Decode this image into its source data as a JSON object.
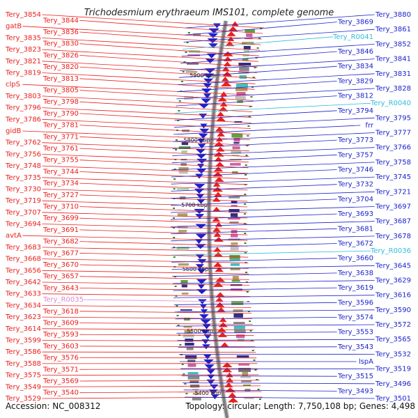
{
  "title": "Trichodesmium erythraeum IMS101, complete genome",
  "footer": {
    "accession": "Accession: NC_008312",
    "summary": "Topology: circular; Length: 7,750,108 bp; Genes: 4,498"
  },
  "colors": {
    "forward": "#e8201c",
    "reverse": "#1a22cc",
    "rna": "#33bbdd",
    "pseudo": "#dd88cc",
    "backbone": "#808080",
    "tick": "#2a8a2a"
  },
  "scale_labels": [
    "5900 kbp",
    "5800 kbp",
    "5700 kbp",
    "5600 kbp",
    "5500 kbp",
    "5400 kbp"
  ],
  "left_labels": [
    "Tery_3854",
    "Tery_3844",
    "gatB",
    "Tery_3836",
    "Tery_3835",
    "Tery_3830",
    "Tery_3823",
    "Tery_3826",
    "Tery_3821",
    "Tery_3820",
    "Tery_3819",
    "Tery_3813",
    "clpS",
    "Tery_3805",
    "Tery_3803",
    "Tery_3798",
    "Tery_3796",
    "Tery_3790",
    "Tery_3786",
    "Tery_3781",
    "gidB",
    "Tery_3771",
    "Tery_3762",
    "Tery_3761",
    "Tery_3756",
    "Tery_3755",
    "Tery_3748",
    "Tery_3744",
    "Tery_3735",
    "Tery_3734",
    "Tery_3730",
    "Tery_3727",
    "Tery_3719",
    "Tery_3710",
    "Tery_3707",
    "Tery_3699",
    "Tery_3694",
    "Tery_3691",
    "avtA",
    "Tery_3682",
    "Tery_3683",
    "Tery_3677",
    "Tery_3668",
    "Tery_3670",
    "Tery_3656",
    "Tery_3657",
    "Tery_3642",
    "Tery_3643",
    "Tery_3633",
    "Tery_R0035",
    "Tery_3634",
    "Tery_3618",
    "Tery_3623",
    "Tery_3609",
    "Tery_3614",
    "Tery_3593",
    "Tery_3599",
    "Tery_3603",
    "Tery_3586",
    "Tery_3576",
    "Tery_3588",
    "Tery_3571",
    "Tery_3575",
    "Tery_3569",
    "Tery_3549",
    "Tery_3540",
    "Tery_3529"
  ],
  "right_labels": [
    "Tery_3880",
    "Tery_3869",
    "Tery_3861",
    "Tery_R0041",
    "Tery_3852",
    "Tery_3846",
    "Tery_3841",
    "Tery_3834",
    "Tery_3831",
    "Tery_3829",
    "Tery_3828",
    "Tery_3812",
    "Tery_R0040",
    "Tery_3794",
    "Tery_3795",
    "frr",
    "Tery_3777",
    "Tery_3773",
    "Tery_3766",
    "Tery_3757",
    "Tery_3758",
    "Tery_3746",
    "Tery_3745",
    "Tery_3732",
    "Tery_3721",
    "Tery_3704",
    "Tery_3697",
    "Tery_3693",
    "Tery_3687",
    "Tery_3681",
    "Tery_3678",
    "Tery_3672",
    "Tery_R0036",
    "Tery_3660",
    "Tery_3645",
    "Tery_3638",
    "Tery_3629",
    "Tery_3619",
    "Tery_3616",
    "Tery_3596",
    "Tery_3590",
    "Tery_3574",
    "Tery_3572",
    "Tery_3553",
    "Tery_3565",
    "Tery_3543",
    "Tery_3532",
    "lspA",
    "Tery_3519",
    "Tery_3515",
    "Tery_3496",
    "Tery_3493",
    "Tery_3501"
  ]
}
